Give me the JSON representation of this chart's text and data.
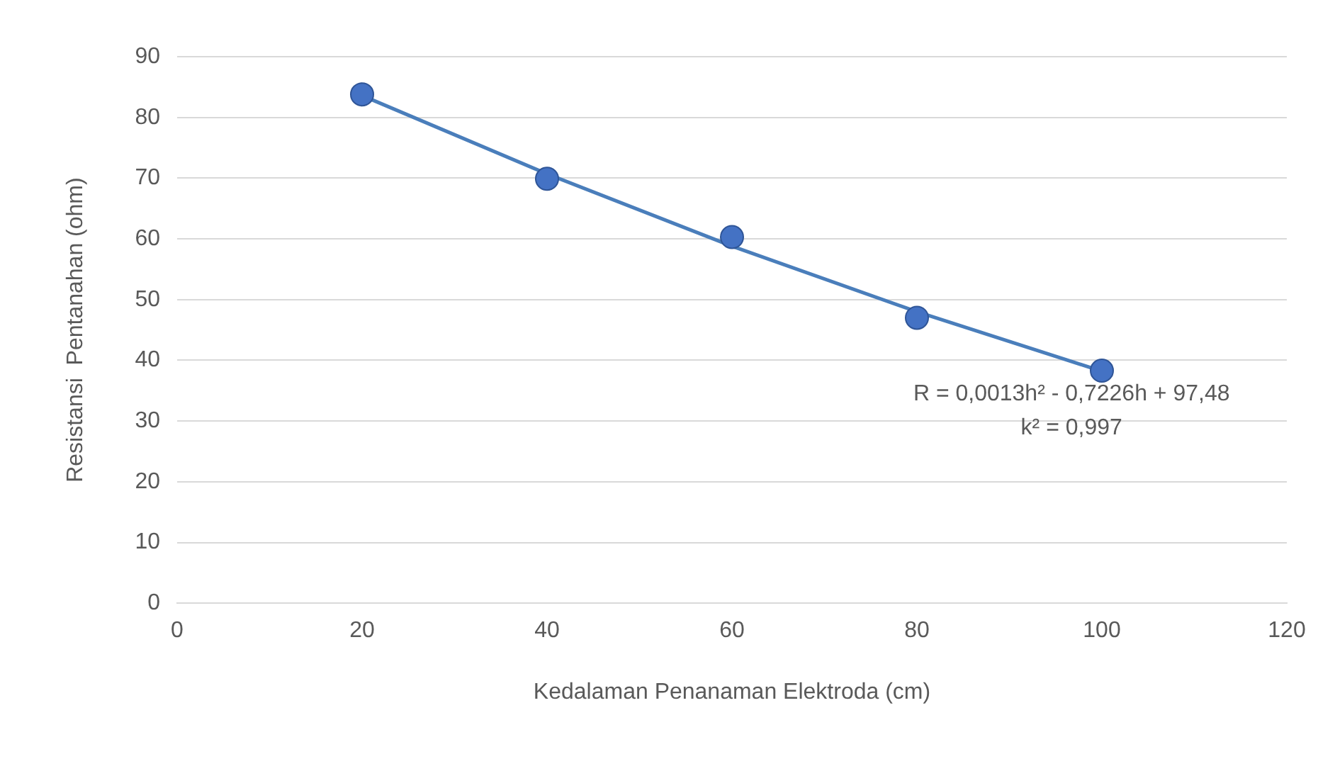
{
  "chart_data": {
    "type": "scatter",
    "xlabel": "Kedalaman Penanaman Elektroda (cm)",
    "ylabel": "Resistansi  Pentanahan (ohm)",
    "xlim": [
      0,
      120
    ],
    "xticks": [
      0,
      20,
      40,
      60,
      80,
      100,
      120
    ],
    "ylim": [
      0,
      90
    ],
    "yticks": [
      0,
      10,
      20,
      30,
      40,
      50,
      60,
      70,
      80,
      90
    ],
    "grid": "y",
    "marker": "circle",
    "series": [
      {
        "type": "line",
        "color": "#4a7ebb",
        "x": [
          20,
          40,
          60,
          80,
          100
        ],
        "values": [
          83.6,
          70.7,
          58.8,
          48.0,
          38.2
        ],
        "marker": "none",
        "line_style": "solid"
      },
      {
        "type": "scatter",
        "color": "#4472c4",
        "x": [
          20,
          40,
          60,
          80,
          100
        ],
        "values": [
          83.8,
          69.9,
          60.3,
          47.0,
          38.3
        ]
      }
    ],
    "annotations": [
      "R = 0,0013h² - 0,7226h + 97,48",
      "k² = 0,997"
    ]
  }
}
